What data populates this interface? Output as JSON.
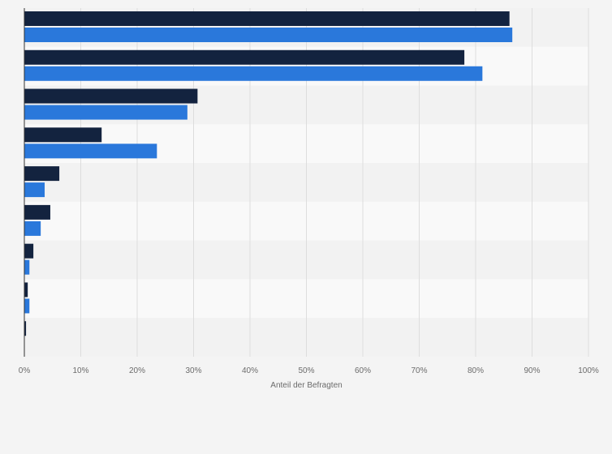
{
  "chart_data": {
    "type": "bar",
    "orientation": "horizontal",
    "xlabel": "Anteil der Befragten",
    "xlim": [
      0,
      100
    ],
    "x_ticks": [
      "0%",
      "10%",
      "20%",
      "30%",
      "40%",
      "50%",
      "60%",
      "70%",
      "80%",
      "90%",
      "100%"
    ],
    "categories": [
      "",
      "",
      "",
      "",
      "",
      "",
      "",
      "",
      ""
    ],
    "series": [
      {
        "color": "#13233f",
        "values": [
          86,
          78,
          30.7,
          13.7,
          6.2,
          4.6,
          1.6,
          0.6,
          0.3
        ]
      },
      {
        "color": "#2a78db",
        "values": [
          86.5,
          81.2,
          28.9,
          23.5,
          3.6,
          2.9,
          0.9,
          0.9,
          0
        ]
      }
    ],
    "grid": true,
    "legend": "none"
  },
  "colors": {
    "background": "#f4f4f4",
    "band_dark": "#f2f2f2",
    "band_light": "#f9f9f9",
    "gridline": "#dddddd",
    "axis": "#333333"
  }
}
